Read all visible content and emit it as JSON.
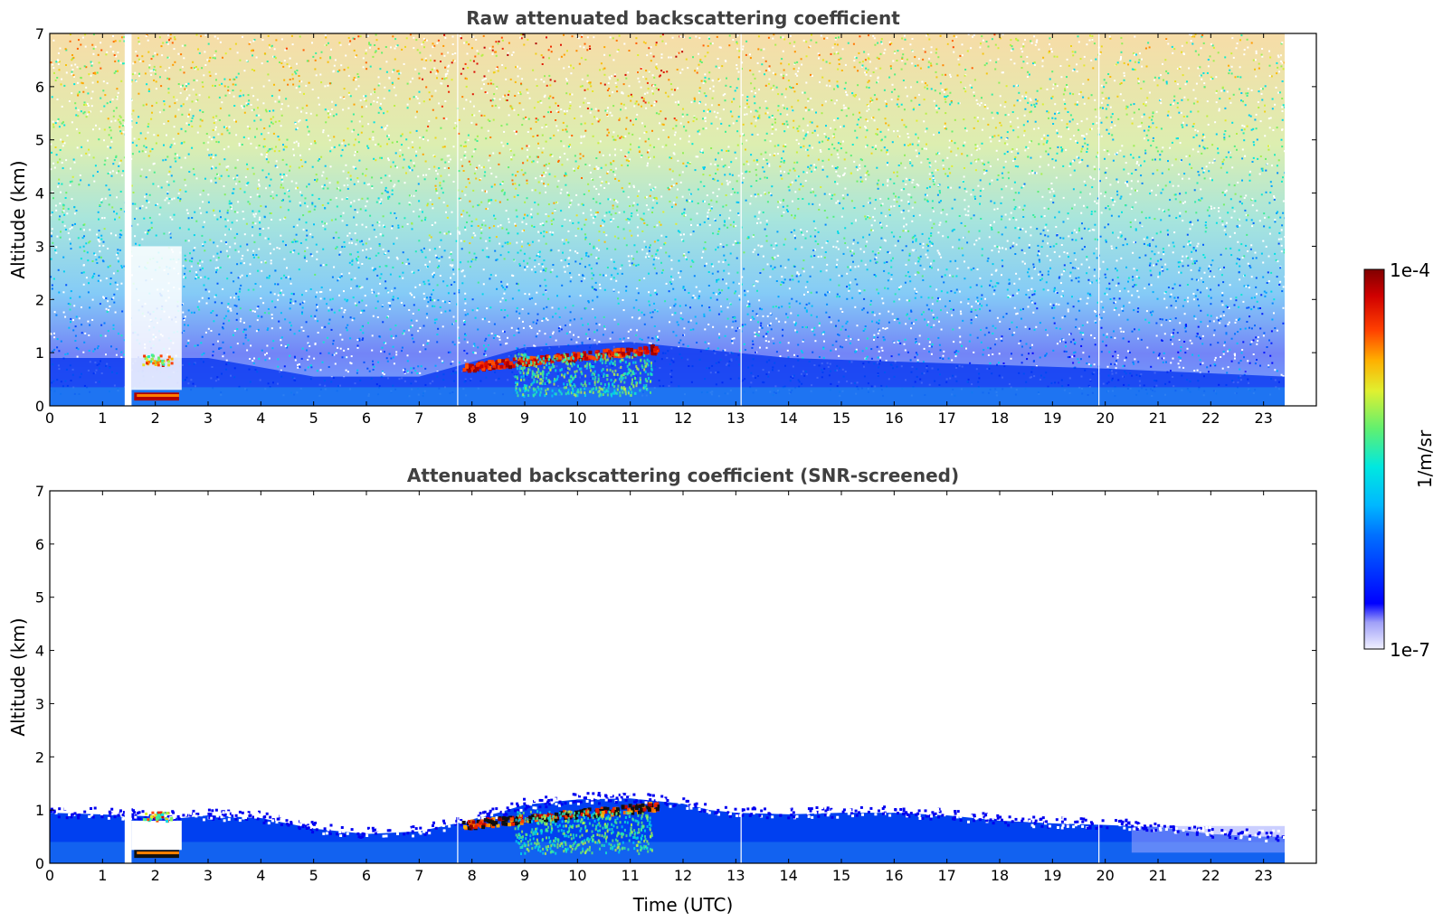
{
  "chart_data": [
    {
      "type": "heatmap",
      "title": "Raw attenuated backscattering coefficient",
      "xlabel": "",
      "ylabel": "Altitude (km)",
      "xlim": [
        0,
        24
      ],
      "ylim": [
        0,
        7
      ],
      "xticks": [
        "0",
        "1",
        "2",
        "3",
        "4",
        "5",
        "6",
        "7",
        "8",
        "9",
        "10",
        "11",
        "12",
        "13",
        "14",
        "15",
        "16",
        "17",
        "18",
        "19",
        "20",
        "21",
        "22",
        "23"
      ],
      "yticks": [
        "0",
        "1",
        "2",
        "3",
        "4",
        "5",
        "6",
        "7"
      ],
      "data_end_hour": 23.4,
      "data_gaps_hours": [
        [
          1.42,
          1.55
        ]
      ],
      "gap_lines_hours": [
        7.73,
        13.1,
        19.88
      ],
      "features": [
        {
          "name": "boundary layer",
          "x_range": [
            0,
            23.4
          ],
          "top_km": 0.9
        },
        {
          "name": "low cloud",
          "x_range": [
            1.55,
            2.5
          ],
          "y_km": [
            0.1,
            0.25
          ]
        },
        {
          "name": "elevated cloud layer",
          "x_range": [
            7.8,
            11.5
          ],
          "y_km": [
            0.8,
            1.2
          ]
        },
        {
          "name": "noisy high signal",
          "x_range": [
            0,
            23.4
          ],
          "y_km": [
            1,
            7
          ]
        }
      ],
      "grid": false
    },
    {
      "type": "heatmap",
      "title": "Attenuated backscattering coefficient (SNR-screened)",
      "xlabel": "Time (UTC)",
      "ylabel": "Altitude (km)",
      "xlim": [
        0,
        24
      ],
      "ylim": [
        0,
        7
      ],
      "xticks": [
        "0",
        "1",
        "2",
        "3",
        "4",
        "5",
        "6",
        "7",
        "8",
        "9",
        "10",
        "11",
        "12",
        "13",
        "14",
        "15",
        "16",
        "17",
        "18",
        "19",
        "20",
        "21",
        "22",
        "23"
      ],
      "yticks": [
        "0",
        "1",
        "2",
        "3",
        "4",
        "5",
        "6",
        "7"
      ],
      "data_end_hour": 23.4,
      "data_gaps_hours": [
        [
          1.42,
          1.55
        ]
      ],
      "gap_lines_hours": [
        7.73,
        13.1,
        19.88
      ],
      "layer_top_km": [
        [
          0,
          0.95
        ],
        [
          1.5,
          0.9
        ],
        [
          2.5,
          0.85
        ],
        [
          3,
          0.9
        ],
        [
          4,
          0.85
        ],
        [
          5,
          0.65
        ],
        [
          6,
          0.55
        ],
        [
          7,
          0.6
        ],
        [
          7.7,
          0.75
        ],
        [
          8.5,
          0.95
        ],
        [
          9,
          1.1
        ],
        [
          10,
          1.2
        ],
        [
          11,
          1.22
        ],
        [
          12,
          1.12
        ],
        [
          12.5,
          1.0
        ],
        [
          13,
          0.95
        ],
        [
          14,
          0.92
        ],
        [
          15,
          0.95
        ],
        [
          16,
          0.95
        ],
        [
          17,
          0.9
        ],
        [
          18,
          0.8
        ],
        [
          19,
          0.75
        ],
        [
          20,
          0.72
        ],
        [
          21,
          0.68
        ],
        [
          22,
          0.55
        ],
        [
          23,
          0.5
        ],
        [
          23.4,
          0.5
        ]
      ],
      "grid": false
    }
  ],
  "colorbar": {
    "label": "1/m/sr",
    "max_label": "1e-4",
    "min_label": "1e-7",
    "scale": "log",
    "colormap": "jet"
  },
  "colors": {
    "axis": "#000000",
    "title": "#404040",
    "background": "#ffffff"
  }
}
